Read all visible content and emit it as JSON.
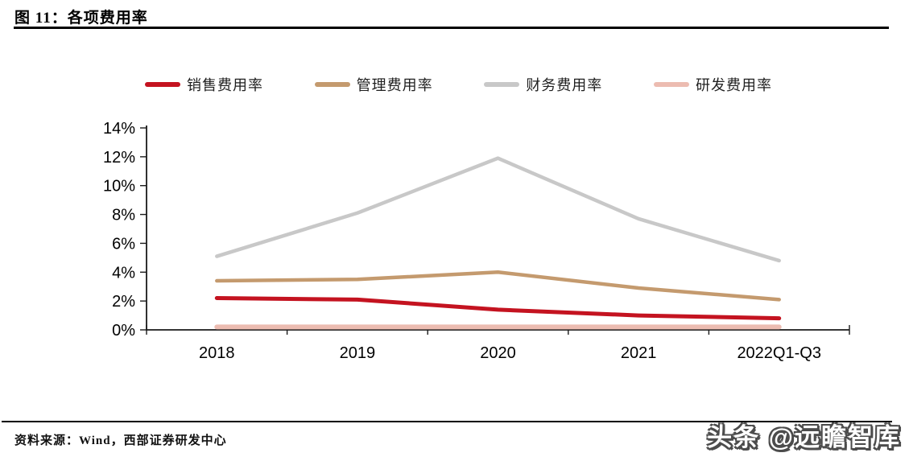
{
  "page": {
    "title": "图 11：各项费用率"
  },
  "footer": {
    "source": "资料来源：Wind，西部证券研发中心",
    "watermark": "头条 @远瞻智库"
  },
  "chart_data": {
    "type": "line",
    "title": "各项费用率",
    "categories": [
      "2018",
      "2019",
      "2020",
      "2021",
      "2022Q1-Q3"
    ],
    "series": [
      {
        "name": "销售费用率",
        "color": "#c41320",
        "values": [
          2.2,
          2.1,
          1.4,
          1.0,
          0.8
        ]
      },
      {
        "name": "管理费用率",
        "color": "#c49a6e",
        "values": [
          3.4,
          3.5,
          4.0,
          2.9,
          2.1
        ]
      },
      {
        "name": "财务费用率",
        "color": "#c8c8c8",
        "values": [
          5.1,
          8.1,
          11.9,
          7.7,
          4.8
        ]
      },
      {
        "name": "研发费用率",
        "color": "#ecbcb1",
        "values": [
          0.2,
          0.2,
          0.2,
          0.2,
          0.2
        ]
      }
    ],
    "ylim": [
      0,
      14
    ],
    "y_ticks": [
      "0%",
      "2%",
      "4%",
      "6%",
      "8%",
      "10%",
      "12%",
      "14%"
    ],
    "y_tick_step": 2,
    "grid": false,
    "legend_position": "top",
    "axis_color": "#1a1a1a"
  }
}
